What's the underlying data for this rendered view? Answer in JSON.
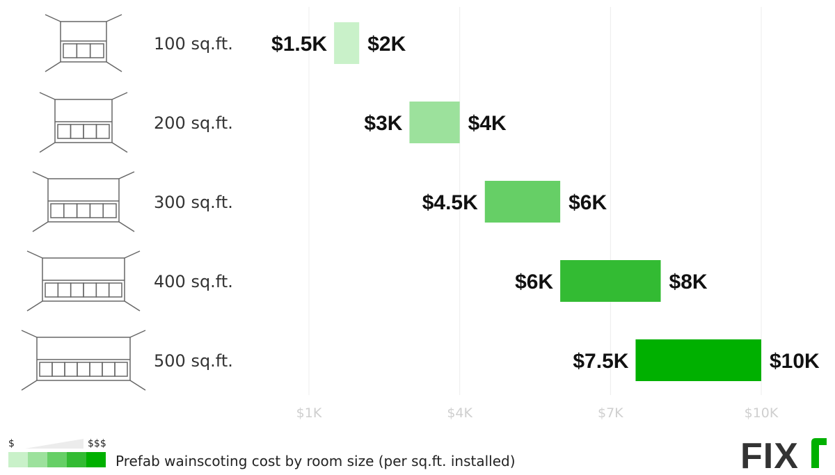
{
  "chart_data": {
    "type": "bar",
    "orientation": "horizontal-range",
    "categories": [
      "100 sq.ft.",
      "200 sq.ft.",
      "300 sq.ft.",
      "400 sq.ft.",
      "500 sq.ft."
    ],
    "series": [
      {
        "low": 1500,
        "high": 2000,
        "low_label": "$1.5K",
        "high_label": "$2K",
        "color": "#c9f1c9"
      },
      {
        "low": 3000,
        "high": 4000,
        "low_label": "$3K",
        "high_label": "$4K",
        "color": "#9ce19c"
      },
      {
        "low": 4500,
        "high": 6000,
        "low_label": "$4.5K",
        "high_label": "$6K",
        "color": "#66cf66"
      },
      {
        "low": 6000,
        "high": 8000,
        "low_label": "$6K",
        "high_label": "$8K",
        "color": "#33bb33"
      },
      {
        "low": 7500,
        "high": 10000,
        "low_label": "$7.5K",
        "high_label": "$10K",
        "color": "#00b000"
      }
    ],
    "x_ticks": [
      {
        "value": 1000,
        "label": "$1K"
      },
      {
        "value": 4000,
        "label": "$4K"
      },
      {
        "value": 7000,
        "label": "$7K"
      },
      {
        "value": 10000,
        "label": "$10K"
      }
    ],
    "xlim": [
      1000,
      10000
    ],
    "grid": true
  },
  "legend": {
    "caption": "Prefab wainscoting cost by room size (per sq.ft. installed)",
    "low_symbol": "$",
    "high_symbol": "$$$",
    "swatches": [
      "#c9f1c9",
      "#9ce19c",
      "#66cf66",
      "#33bb33",
      "#00b000"
    ]
  },
  "logo": {
    "text": "FIXR",
    "color": "#333333",
    "accent": "#00b000"
  },
  "icons": [
    "room-panel-icon",
    "room-panel-icon",
    "room-panel-icon",
    "room-panel-icon",
    "room-panel-icon"
  ]
}
